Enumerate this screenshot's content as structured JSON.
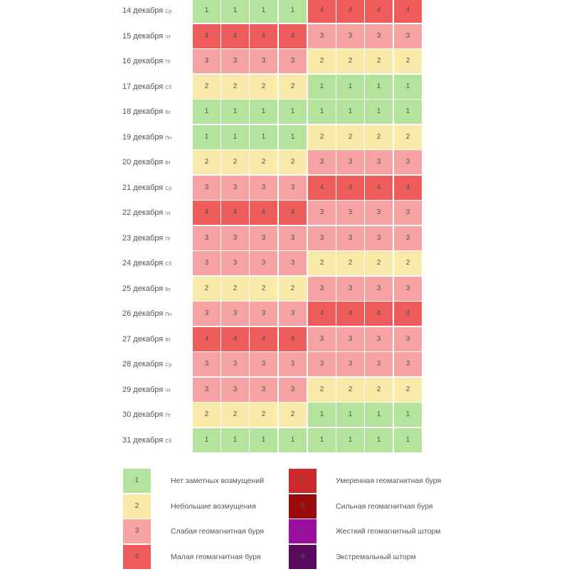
{
  "level_colors": {
    "1": "#b4e39e",
    "2": "#f9eaa9",
    "3": "#f7a3a3",
    "4": "#ee5c5c",
    "5": "#cc2a2a",
    "6": "#9c0b0b",
    "7": "#9b0fa0",
    "8": "#5a0a5e"
  },
  "chart_data": {
    "type": "heatmap",
    "title": "",
    "rows": [
      {
        "date": "14 декабря",
        "dow": "Ср",
        "values": [
          1,
          1,
          1,
          1,
          4,
          4,
          4,
          4
        ]
      },
      {
        "date": "15 декабря",
        "dow": "Чт",
        "values": [
          4,
          4,
          4,
          4,
          3,
          3,
          3,
          3
        ]
      },
      {
        "date": "16 декабря",
        "dow": "Пт",
        "values": [
          3,
          3,
          3,
          3,
          2,
          2,
          2,
          2
        ]
      },
      {
        "date": "17 декабря",
        "dow": "Сб",
        "values": [
          2,
          2,
          2,
          2,
          1,
          1,
          1,
          1
        ]
      },
      {
        "date": "18 декабря",
        "dow": "Вс",
        "values": [
          1,
          1,
          1,
          1,
          1,
          1,
          1,
          1
        ]
      },
      {
        "date": "19 декабря",
        "dow": "Пн",
        "values": [
          1,
          1,
          1,
          1,
          2,
          2,
          2,
          2
        ]
      },
      {
        "date": "20 декабря",
        "dow": "Вт",
        "values": [
          2,
          2,
          2,
          2,
          3,
          3,
          3,
          3
        ]
      },
      {
        "date": "21 декабря",
        "dow": "Ср",
        "values": [
          3,
          3,
          3,
          3,
          4,
          4,
          4,
          4
        ]
      },
      {
        "date": "22 декабря",
        "dow": "Чт",
        "values": [
          4,
          4,
          4,
          4,
          3,
          3,
          3,
          3
        ]
      },
      {
        "date": "23 декабря",
        "dow": "Пт",
        "values": [
          3,
          3,
          3,
          3,
          3,
          3,
          3,
          3
        ]
      },
      {
        "date": "24 декабря",
        "dow": "Сб",
        "values": [
          3,
          3,
          3,
          3,
          2,
          2,
          2,
          2
        ]
      },
      {
        "date": "25 декабря",
        "dow": "Вс",
        "values": [
          2,
          2,
          2,
          2,
          3,
          3,
          3,
          3
        ]
      },
      {
        "date": "26 декабря",
        "dow": "Пн",
        "values": [
          3,
          3,
          3,
          3,
          4,
          4,
          4,
          4
        ]
      },
      {
        "date": "27 декабря",
        "dow": "Вт",
        "values": [
          4,
          4,
          4,
          4,
          3,
          3,
          3,
          3
        ]
      },
      {
        "date": "28 декабря",
        "dow": "Ср",
        "values": [
          3,
          3,
          3,
          3,
          3,
          3,
          3,
          3
        ]
      },
      {
        "date": "29 декабря",
        "dow": "Чт",
        "values": [
          3,
          3,
          3,
          3,
          2,
          2,
          2,
          2
        ]
      },
      {
        "date": "30 декабря",
        "dow": "Пт",
        "values": [
          2,
          2,
          2,
          2,
          1,
          1,
          1,
          1
        ]
      },
      {
        "date": "31 декабря",
        "dow": "Сб",
        "values": [
          1,
          1,
          1,
          1,
          1,
          1,
          1,
          1
        ]
      }
    ],
    "legend": [
      {
        "level": "1",
        "label": "Нет заметных возмущений"
      },
      {
        "level": "2",
        "label": "Небольшие возмущения"
      },
      {
        "level": "3",
        "label": "Слабая геомагнитная буря"
      },
      {
        "level": "4",
        "label": "Малая геомагнитная буря"
      },
      {
        "level": "5",
        "label": "Умеренная геомагнитная буря"
      },
      {
        "level": "6",
        "label": "Сильная геомагнитная буря"
      },
      {
        "level": "7",
        "label": "Жесткий геомагнитный шторм"
      },
      {
        "level": "8",
        "label": "Экстремальный шторм"
      }
    ]
  }
}
